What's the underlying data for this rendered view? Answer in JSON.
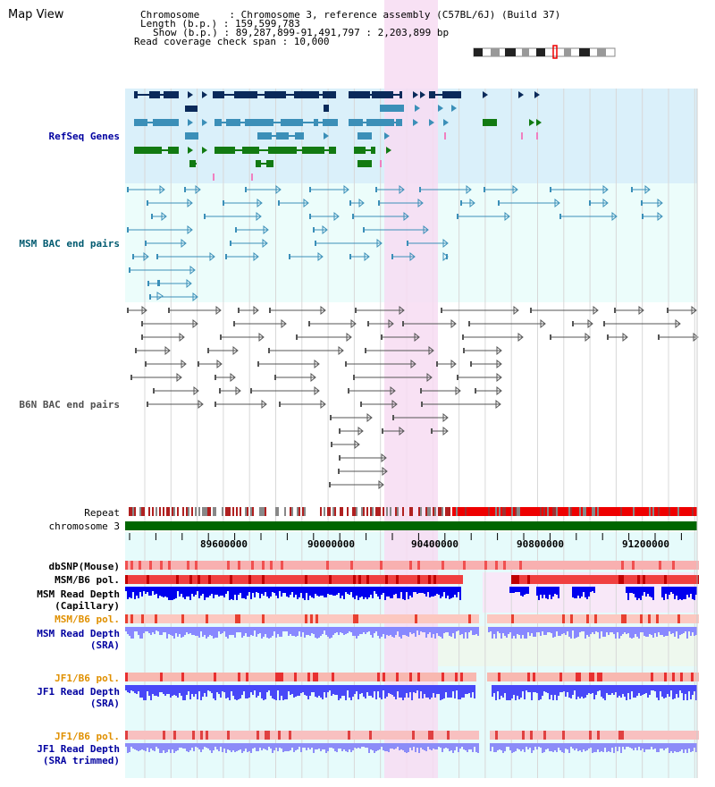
{
  "title": "Map View",
  "header": {
    "chromosome": "Chromosome     : Chromosome 3, reference assembly (C57BL/6J) (Build 37)",
    "length": "Length (b.p.) : 159,599,783",
    "show": "Show (b.p.) : 89,287,899-91,491,797 : 2,203,899 bp",
    "coverage": "Read coverage check span : 10,000"
  },
  "tracks": {
    "refseq": "RefSeq Genes",
    "msm_bac": "MSM BAC end pairs",
    "b6n_bac": "B6N BAC end pairs",
    "repeat": "Repeat",
    "chromosome": "chromosome 3",
    "dbsnp": "dbSNP(Mouse)",
    "msm_pol": "MSM/B6 pol.",
    "msm_depth_cap_1": "MSM Read Depth",
    "msm_depth_cap_2": "(Capillary)",
    "msm_pol_sra": "MSM/B6 pol.",
    "msm_depth_sra_1": "MSM Read Depth",
    "msm_depth_sra_2": "(SRA)",
    "jf1_pol": "JF1/B6 pol.",
    "jf1_depth_1": "JF1 Read Depth",
    "jf1_depth_2": "(SRA)",
    "jf1_pol_trim": "JF1/B6 pol.",
    "jf1_trim_1": "JF1 Read Depth",
    "jf1_trim_2": "(SRA trimmed)"
  },
  "axis": {
    "ticks": [
      "89600000",
      "90000000",
      "90400000",
      "90800000",
      "91200000"
    ]
  },
  "colors": {
    "refseq_bg": "#daf0fa",
    "bac_bg": "#ecfdfb",
    "highlight": "#f7dcf2",
    "navy": "#0a2a5a",
    "teal": "#3b8fb8",
    "green": "#127a12",
    "chrom_bar": "#006600",
    "depth_blue": "#0000ee",
    "depth_light": "#8888ff",
    "label_blue": "#0000a0",
    "label_teal": "#005a70",
    "label_orange": "#e09000"
  }
}
